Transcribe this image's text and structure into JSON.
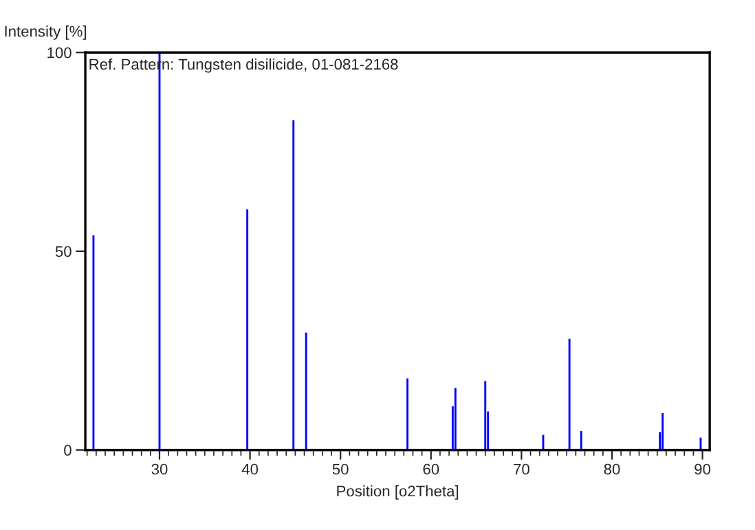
{
  "chart_data": {
    "type": "bar",
    "ylabel": "Intensity [%]",
    "xlabel": "Position [o2Theta]",
    "annotations": [
      "Ref. Pattern: Tungsten disilicide, 01-081-2168"
    ],
    "x": [
      22.7,
      30.0,
      39.7,
      44.8,
      46.2,
      57.4,
      62.4,
      62.7,
      66.0,
      66.3,
      72.4,
      75.3,
      76.6,
      85.3,
      85.6,
      89.8
    ],
    "series": [
      {
        "color": "#0000ff",
        "values": [
          54,
          100,
          60.5,
          83,
          29.5,
          18,
          11,
          15.6,
          17.3,
          9.7,
          3.8,
          28,
          4.8,
          4.5,
          9.3,
          3.1
        ]
      }
    ],
    "xlim": [
      21.8,
      90.8
    ],
    "xticks": [
      30,
      40,
      50,
      60,
      70,
      80,
      90
    ],
    "ylim": [
      0,
      100
    ],
    "yticks": [
      0,
      50,
      100
    ],
    "grid": false,
    "legend": false
  }
}
